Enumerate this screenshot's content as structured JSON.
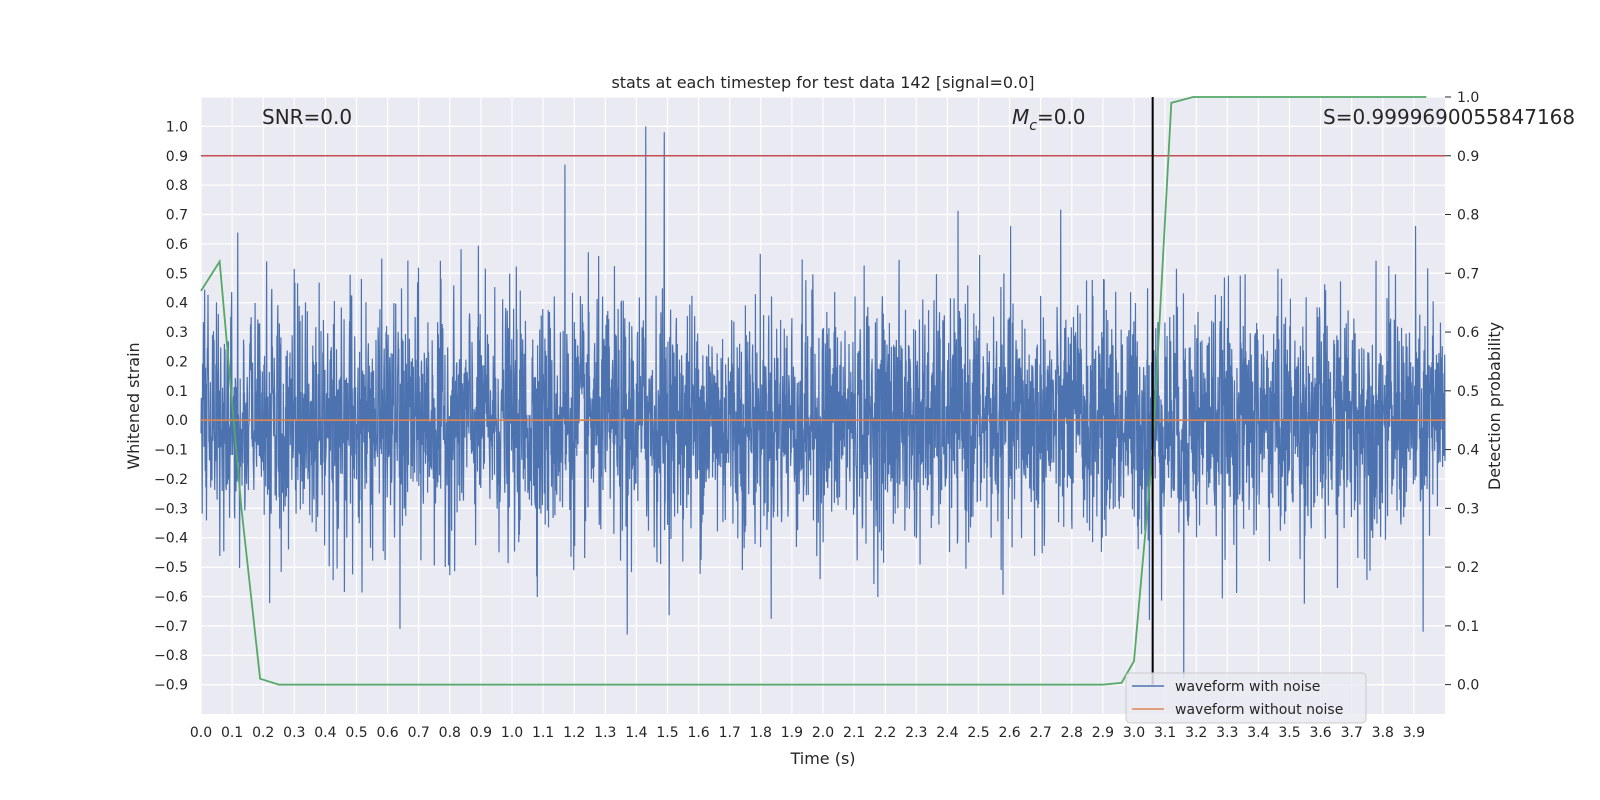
{
  "chart_data": {
    "type": "line",
    "title": "stats at each timestep for test data 142 [signal=0.0]",
    "xlabel": "Time (s)",
    "ylabel": "Whitened strain",
    "y2label": "Detection probability",
    "xlim": [
      0.0,
      4.0
    ],
    "ylim": [
      -1.0,
      1.1
    ],
    "y2lim": [
      -0.05,
      1.0
    ],
    "x_ticks": [
      "0.0",
      "0.1",
      "0.2",
      "0.3",
      "0.4",
      "0.5",
      "0.6",
      "0.7",
      "0.8",
      "0.9",
      "1.0",
      "1.1",
      "1.2",
      "1.3",
      "1.4",
      "1.5",
      "1.6",
      "1.7",
      "1.8",
      "1.9",
      "2.0",
      "2.1",
      "2.2",
      "2.3",
      "2.4",
      "2.5",
      "2.6",
      "2.7",
      "2.8",
      "2.9",
      "3.0",
      "3.1",
      "3.2",
      "3.3",
      "3.4",
      "3.5",
      "3.6",
      "3.7",
      "3.8",
      "3.9"
    ],
    "y_ticks": [
      "-0.9",
      "-0.8",
      "-0.7",
      "-0.6",
      "-0.5",
      "-0.4",
      "-0.3",
      "-0.2",
      "-0.1",
      "0.0",
      "0.1",
      "0.2",
      "0.3",
      "0.4",
      "0.5",
      "0.6",
      "0.7",
      "0.8",
      "0.9",
      "1.0"
    ],
    "y2_ticks": [
      "0.0",
      "0.1",
      "0.2",
      "0.3",
      "0.4",
      "0.5",
      "0.6",
      "0.7",
      "0.8",
      "0.9",
      "1.0"
    ],
    "grid": true,
    "legend_placement": "lower-right",
    "annotations": [
      "SNR=0.0",
      "M_c=0.0",
      "S=0.9999690055847168"
    ],
    "annotation_parts": {
      "snr": "SNR=0.0",
      "mc_symbol": "M",
      "mc_sub": "c",
      "mc_value": "=0.0",
      "s": "S=0.9999690055847168"
    },
    "series": [
      {
        "name": "waveform with noise",
        "color": "#4c72b0",
        "generated": "dense noise signal, approx range -0.9 to 1.0, values mostly within ±0.5",
        "spikes": [
          [
            1.43,
            1.0
          ],
          [
            1.49,
            0.98
          ],
          [
            1.17,
            0.87
          ],
          [
            3.16,
            -0.88
          ],
          [
            3.05,
            -0.68
          ],
          [
            1.37,
            -0.73
          ],
          [
            0.64,
            -0.71
          ],
          [
            3.93,
            -0.72
          ]
        ]
      },
      {
        "name": "waveform without noise",
        "color": "#dd8452",
        "x": [
          0.0,
          4.0
        ],
        "y": [
          0.0,
          0.0
        ]
      },
      {
        "name": "detection probability",
        "axis": "right",
        "color": "#55a868",
        "x": [
          0.0,
          0.06,
          0.1,
          0.13,
          0.19,
          0.25,
          0.5,
          1.0,
          1.5,
          2.0,
          2.5,
          2.9,
          2.96,
          3.0,
          3.06,
          3.12,
          3.19,
          3.5,
          3.94
        ],
        "y": [
          0.67,
          0.72,
          0.48,
          0.3,
          0.01,
          0.0,
          0.0,
          0.0,
          0.0,
          0.0,
          0.0,
          0.0,
          0.003,
          0.04,
          0.4,
          0.99,
          1.0,
          1.0,
          1.0
        ]
      }
    ],
    "reference_lines": [
      {
        "type": "horizontal",
        "axis": "right",
        "value": 0.9,
        "color": "#c44e52"
      },
      {
        "type": "vertical",
        "value": 3.06,
        "ymin": 0.0,
        "ymax": 1.0,
        "axis": "right",
        "color": "#000000"
      }
    ]
  },
  "legend": {
    "items": [
      {
        "label": "waveform with noise",
        "color": "#4c72b0"
      },
      {
        "label": "waveform without noise",
        "color": "#dd8452"
      }
    ]
  }
}
